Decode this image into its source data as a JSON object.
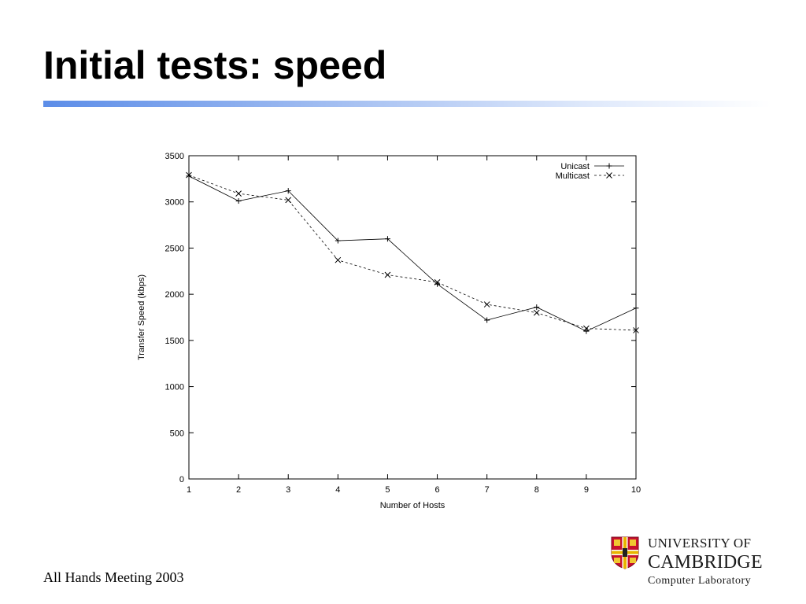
{
  "slide": {
    "title": "Initial tests: speed",
    "footer": "All Hands Meeting 2003"
  },
  "logo": {
    "line1": "UNIVERSITY OF",
    "line2": "CAMBRIDGE",
    "line3": "Computer Laboratory",
    "icon": "university-crest-icon"
  },
  "colors": {
    "title_rule": "#5c8de8",
    "crest_red": "#c8102e",
    "crest_gold": "#e8b400"
  },
  "chart_data": {
    "type": "line",
    "title": "",
    "xlabel": "Number of Hosts",
    "ylabel": "Transfer Speed (kbps)",
    "x": [
      1,
      2,
      3,
      4,
      5,
      6,
      7,
      8,
      9,
      10
    ],
    "xlim": [
      1,
      10
    ],
    "ylim": [
      0,
      3500
    ],
    "xticks": [
      1,
      2,
      3,
      4,
      5,
      6,
      7,
      8,
      9,
      10
    ],
    "yticks": [
      0,
      500,
      1000,
      1500,
      2000,
      2500,
      3000,
      3500
    ],
    "grid": false,
    "legend": "top-right",
    "series": [
      {
        "name": "Unicast",
        "marker": "+",
        "dash": "solid",
        "values": [
          3280,
          3010,
          3120,
          2580,
          2600,
          2110,
          1720,
          1860,
          1600,
          1850
        ]
      },
      {
        "name": "Multicast",
        "marker": "x",
        "dash": "dashed",
        "values": [
          3290,
          3090,
          3020,
          2370,
          2210,
          2130,
          1890,
          1800,
          1630,
          1610
        ]
      }
    ]
  }
}
